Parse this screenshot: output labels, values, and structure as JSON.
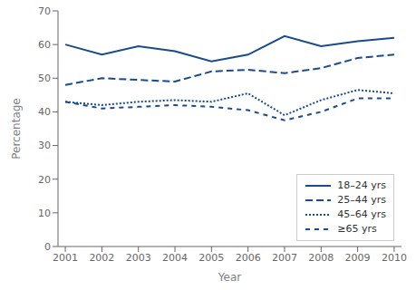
{
  "chart_data": {
    "type": "line",
    "xlabel": "Year",
    "ylabel": "Percentage",
    "x": [
      2001,
      2002,
      2003,
      2004,
      2005,
      2006,
      2007,
      2008,
      2009,
      2010
    ],
    "series": [
      {
        "name": "18–24 yrs",
        "color": "#1a4b8c",
        "line_style": "solid",
        "values": [
          60,
          57,
          59.5,
          58,
          55,
          57,
          62.5,
          59.5,
          61,
          62
        ]
      },
      {
        "name": "25–44 yrs",
        "color": "#1a4b8c",
        "line_style": "longdash",
        "values": [
          48,
          50,
          49.5,
          49,
          52,
          52.5,
          51.5,
          53,
          56,
          57
        ]
      },
      {
        "name": "45–64 yrs",
        "color": "#1a4b8c",
        "line_style": "dotted",
        "values": [
          43,
          42,
          43,
          43.5,
          43,
          45.5,
          39,
          43.5,
          46.5,
          45.5
        ]
      },
      {
        "name": "≥65 yrs",
        "color": "#1a4b8c",
        "line_style": "dashed",
        "values": [
          43,
          41,
          41.5,
          42,
          41.5,
          40.5,
          37.5,
          40,
          44,
          44
        ]
      }
    ],
    "xlim": [
      2000.8,
      2010.2
    ],
    "xticks": [
      2001,
      2002,
      2003,
      2004,
      2005,
      2006,
      2007,
      2008,
      2009,
      2010
    ],
    "ylim": [
      0,
      70
    ],
    "yticks": [
      0,
      10,
      20,
      30,
      40,
      50,
      60,
      70
    ],
    "grid": false,
    "legend": "lower right"
  }
}
